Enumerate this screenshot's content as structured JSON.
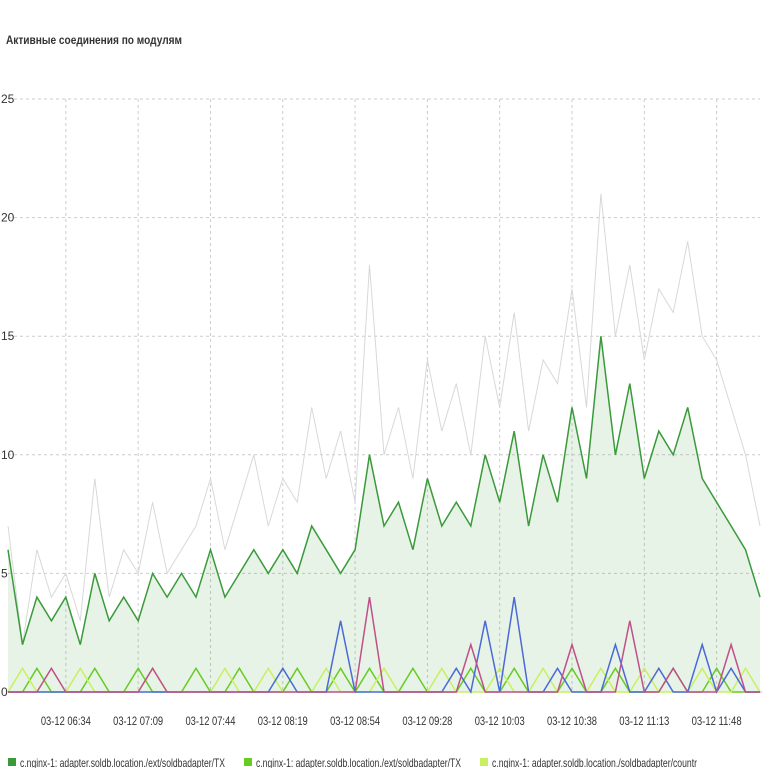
{
  "chart_data": {
    "type": "line",
    "title": "Активные соединения по модулям",
    "categories": [
      null,
      null,
      null,
      null,
      "03-12 06:34",
      null,
      null,
      null,
      null,
      "03-12 07:09",
      null,
      null,
      null,
      null,
      "03-12 07:44",
      null,
      null,
      null,
      null,
      "03-12 08:19",
      null,
      null,
      null,
      null,
      "03-12 08:54",
      null,
      null,
      null,
      null,
      "03-12 09:28",
      null,
      null,
      null,
      null,
      "03-12 10:03",
      null,
      null,
      null,
      null,
      "03-12 10:38",
      null,
      null,
      null,
      null,
      "03-12 11:13",
      null,
      null,
      null,
      null,
      "03-12 11:48",
      null,
      null,
      null
    ],
    "series": [
      {
        "color": "#d8d8d8",
        "values": [
          7,
          2,
          6,
          4,
          5,
          3,
          9,
          4,
          6,
          5,
          8,
          5,
          6,
          7,
          9,
          6,
          8,
          10,
          7,
          9,
          8,
          12,
          9,
          11,
          8,
          18,
          10,
          12,
          9,
          14,
          11,
          13,
          10,
          15,
          12,
          16,
          11,
          14,
          13,
          17,
          12,
          21,
          15,
          18,
          14,
          17,
          16,
          19,
          15,
          14,
          12,
          10,
          7
        ]
      },
      {
        "name": "c.nginx-1: adapter.soldb.location./ext/soldbadapter/TX",
        "color": "#3a9a3a",
        "values": [
          6,
          2,
          4,
          3,
          4,
          2,
          5,
          3,
          4,
          3,
          5,
          4,
          5,
          4,
          6,
          4,
          5,
          6,
          5,
          6,
          5,
          7,
          6,
          5,
          6,
          10,
          7,
          8,
          6,
          9,
          7,
          8,
          7,
          10,
          8,
          11,
          7,
          10,
          8,
          12,
          9,
          15,
          10,
          13,
          9,
          11,
          10,
          12,
          9,
          8,
          7,
          6,
          4
        ]
      },
      {
        "name": "c.nginx-1: adapter.soldb.location./ext/soldbadapter/TX",
        "color": "#66cc22",
        "values": [
          0,
          0,
          1,
          0,
          0,
          0,
          1,
          0,
          0,
          1,
          0,
          0,
          0,
          1,
          0,
          0,
          1,
          0,
          0,
          0,
          1,
          0,
          0,
          1,
          0,
          1,
          0,
          0,
          1,
          0,
          0,
          0,
          1,
          0,
          0,
          1,
          0,
          0,
          0,
          1,
          0,
          0,
          1,
          0,
          0,
          0,
          1,
          0,
          0,
          1,
          0,
          0,
          0
        ]
      },
      {
        "name": "c.nginx-1: adapter.soldb.location./soldbadapter/countr",
        "color": "#c8f060",
        "values": [
          0,
          1,
          0,
          0,
          0,
          1,
          0,
          0,
          0,
          0,
          1,
          0,
          0,
          0,
          0,
          1,
          0,
          0,
          1,
          0,
          0,
          0,
          1,
          0,
          0,
          0,
          1,
          0,
          0,
          0,
          1,
          0,
          0,
          0,
          1,
          0,
          0,
          1,
          0,
          0,
          0,
          1,
          0,
          0,
          1,
          0,
          0,
          0,
          1,
          0,
          0,
          1,
          0
        ]
      },
      {
        "color": "#4a6ad8",
        "values": [
          0,
          0,
          0,
          0,
          0,
          0,
          0,
          0,
          0,
          0,
          0,
          0,
          0,
          0,
          0,
          0,
          0,
          0,
          0,
          1,
          0,
          0,
          0,
          3,
          0,
          0,
          0,
          0,
          0,
          0,
          0,
          1,
          0,
          3,
          0,
          4,
          0,
          0,
          1,
          0,
          0,
          0,
          2,
          0,
          0,
          1,
          0,
          0,
          2,
          0,
          1,
          0,
          0
        ]
      },
      {
        "color": "#c0508a",
        "values": [
          0,
          0,
          0,
          1,
          0,
          0,
          0,
          0,
          0,
          0,
          1,
          0,
          0,
          0,
          0,
          0,
          0,
          0,
          0,
          0,
          0,
          0,
          0,
          0,
          0,
          4,
          0,
          0,
          0,
          0,
          0,
          0,
          2,
          0,
          0,
          0,
          0,
          0,
          0,
          2,
          0,
          0,
          0,
          3,
          0,
          0,
          1,
          0,
          0,
          0,
          2,
          0,
          0
        ]
      }
    ],
    "ylim": [
      0,
      25
    ],
    "yticks": [
      0,
      5,
      10,
      15,
      20,
      25
    ],
    "grid": true
  }
}
